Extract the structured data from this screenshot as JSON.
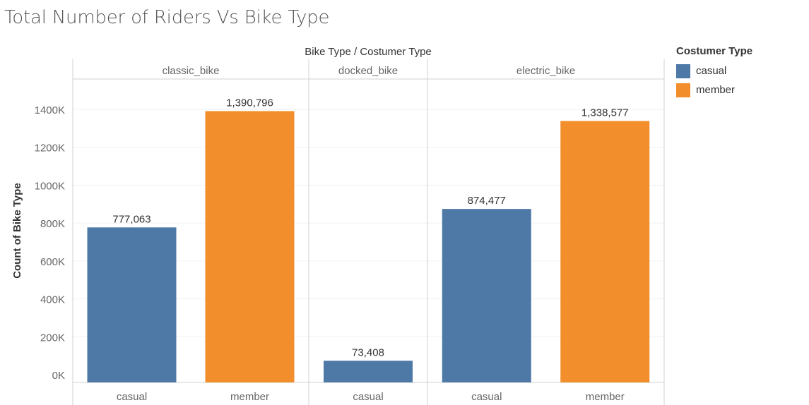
{
  "title": "Total Number of Riders Vs Bike Type",
  "chart_data": {
    "type": "bar",
    "title": "Total Number of Riders Vs Bike Type",
    "header_label": "Bike Type  /  Costumer Type",
    "ylabel": "Count of Bike Type",
    "xlabel": "",
    "ylim": [
      0,
      1500000
    ],
    "y_ticks": [
      0,
      200000,
      400000,
      600000,
      800000,
      1000000,
      1200000,
      1400000
    ],
    "y_tick_labels": [
      "0K",
      "200K",
      "400K",
      "600K",
      "800K",
      "1000K",
      "1200K",
      "1400K"
    ],
    "grid": true,
    "legend": {
      "title": "Costumer Type",
      "placement": "right"
    },
    "colors": {
      "casual": "#4e79a7",
      "member": "#f28e2b"
    },
    "groups": [
      {
        "name": "classic_bike",
        "bars": [
          {
            "category": "casual",
            "value": 777063,
            "label": "777,063"
          },
          {
            "category": "member",
            "value": 1390796,
            "label": "1,390,796"
          }
        ]
      },
      {
        "name": "docked_bike",
        "bars": [
          {
            "category": "casual",
            "value": 73408,
            "label": "73,408"
          }
        ]
      },
      {
        "name": "electric_bike",
        "bars": [
          {
            "category": "casual",
            "value": 874477,
            "label": "874,477"
          },
          {
            "category": "member",
            "value": 1338577,
            "label": "1,338,577"
          }
        ]
      }
    ],
    "series": [
      {
        "name": "casual"
      },
      {
        "name": "member"
      }
    ]
  }
}
